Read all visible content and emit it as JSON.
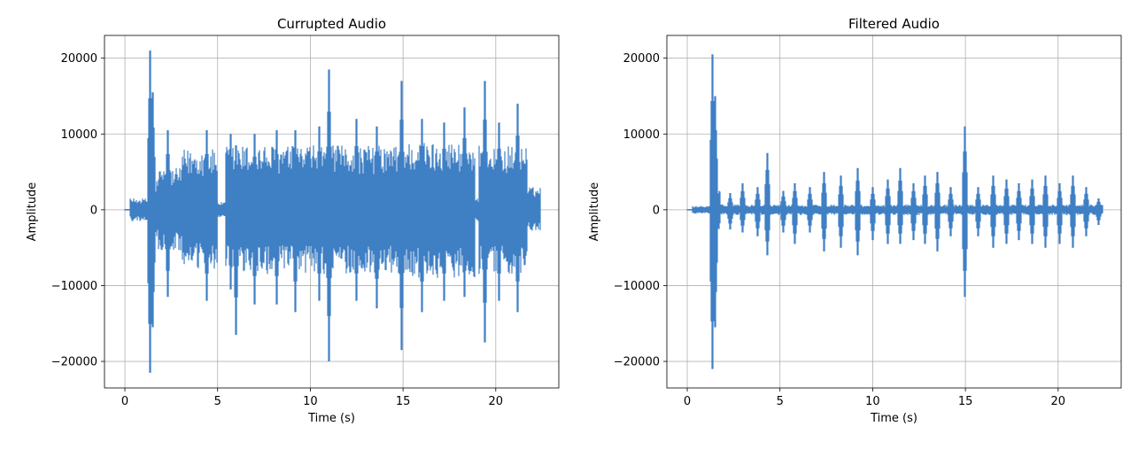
{
  "chart_data": [
    {
      "type": "line",
      "title": "Currupted Audio",
      "xlabel": "Time (s)",
      "ylabel": "Amplitude",
      "xlim": [
        -1.1,
        23.4
      ],
      "ylim": [
        -23500,
        23000
      ],
      "xticks": [
        0,
        5,
        10,
        15,
        20
      ],
      "yticks": [
        -20000,
        -10000,
        0,
        10000,
        20000
      ],
      "xtick_labels": [
        "0",
        "5",
        "10",
        "15",
        "20"
      ],
      "ytick_labels": [
        "−20000",
        "−10000",
        "0",
        "10000",
        "20000"
      ],
      "grid": true,
      "color": "#3f7fc4",
      "series": [
        {
          "x_start": 0.0,
          "x_end": 22.4,
          "envelope_segments": [
            {
              "t0": 0.0,
              "t1": 0.25,
              "amp": 0
            },
            {
              "t0": 0.25,
              "t1": 1.3,
              "amp": 1500
            },
            {
              "t0": 1.3,
              "t1": 1.55,
              "amp": 14000
            },
            {
              "t0": 1.55,
              "t1": 1.8,
              "amp": 4000
            },
            {
              "t0": 1.8,
              "t1": 3.1,
              "amp": 5500
            },
            {
              "t0": 3.1,
              "t1": 5.0,
              "amp": 8000
            },
            {
              "t0": 5.0,
              "t1": 5.4,
              "amp": 1000
            },
            {
              "t0": 5.4,
              "t1": 14.8,
              "amp": 8500
            },
            {
              "t0": 14.8,
              "t1": 18.9,
              "amp": 9000
            },
            {
              "t0": 18.9,
              "t1": 19.1,
              "amp": 1500
            },
            {
              "t0": 19.1,
              "t1": 21.7,
              "amp": 8500
            },
            {
              "t0": 21.7,
              "t1": 22.4,
              "amp": 3000
            }
          ],
          "peaks": [
            {
              "t": 1.38,
              "max": 21000,
              "min": -21500
            },
            {
              "t": 1.5,
              "max": 15500,
              "min": -15500
            },
            {
              "t": 2.3,
              "max": 10500,
              "min": -11500
            },
            {
              "t": 4.4,
              "max": 10500,
              "min": -12000
            },
            {
              "t": 5.7,
              "max": 10000,
              "min": -10500
            },
            {
              "t": 6.0,
              "max": 8500,
              "min": -16500
            },
            {
              "t": 7.0,
              "max": 10000,
              "min": -12500
            },
            {
              "t": 8.2,
              "max": 10500,
              "min": -12500
            },
            {
              "t": 9.2,
              "max": 10500,
              "min": -13500
            },
            {
              "t": 10.5,
              "max": 11000,
              "min": -12000
            },
            {
              "t": 11.0,
              "max": 18500,
              "min": -20000
            },
            {
              "t": 12.5,
              "max": 12000,
              "min": -12000
            },
            {
              "t": 13.6,
              "max": 11000,
              "min": -13000
            },
            {
              "t": 14.9,
              "max": 17000,
              "min": -18500
            },
            {
              "t": 16.0,
              "max": 12000,
              "min": -13500
            },
            {
              "t": 17.2,
              "max": 11500,
              "min": -12000
            },
            {
              "t": 18.3,
              "max": 13500,
              "min": -11500
            },
            {
              "t": 19.4,
              "max": 17000,
              "min": -17500
            },
            {
              "t": 20.2,
              "max": 11500,
              "min": -12000
            },
            {
              "t": 21.2,
              "max": 14000,
              "min": -13500
            }
          ]
        }
      ]
    },
    {
      "type": "line",
      "title": "Filtered Audio",
      "xlabel": "Time (s)",
      "ylabel": "Amplitude",
      "xlim": [
        -1.1,
        23.4
      ],
      "ylim": [
        -23500,
        23000
      ],
      "xticks": [
        0,
        5,
        10,
        15,
        20
      ],
      "yticks": [
        -20000,
        -10000,
        0,
        10000,
        20000
      ],
      "xtick_labels": [
        "0",
        "5",
        "10",
        "15",
        "20"
      ],
      "ytick_labels": [
        "−20000",
        "−10000",
        "0",
        "10000",
        "20000"
      ],
      "grid": true,
      "color": "#3f7fc4",
      "series": [
        {
          "x_start": 0.0,
          "x_end": 22.4,
          "envelope_segments": [
            {
              "t0": 0.0,
              "t1": 0.25,
              "amp": 0
            },
            {
              "t0": 0.25,
              "t1": 1.3,
              "amp": 500
            },
            {
              "t0": 1.3,
              "t1": 1.8,
              "amp": 3000
            },
            {
              "t0": 1.8,
              "t1": 22.4,
              "amp": 700
            }
          ],
          "peaks": [
            {
              "t": 1.38,
              "max": 20500,
              "min": -21000
            },
            {
              "t": 1.5,
              "max": 15000,
              "min": -15500
            },
            {
              "t": 2.3,
              "max": 2200,
              "min": -2600
            },
            {
              "t": 3.0,
              "max": 3500,
              "min": -3000
            },
            {
              "t": 3.8,
              "max": 3000,
              "min": -3500
            },
            {
              "t": 4.3,
              "max": 7500,
              "min": -6000
            },
            {
              "t": 5.2,
              "max": 2500,
              "min": -3000
            },
            {
              "t": 5.8,
              "max": 3500,
              "min": -4500
            },
            {
              "t": 6.6,
              "max": 3000,
              "min": -3000
            },
            {
              "t": 7.4,
              "max": 5000,
              "min": -5500
            },
            {
              "t": 8.3,
              "max": 4500,
              "min": -5000
            },
            {
              "t": 9.2,
              "max": 5500,
              "min": -6000
            },
            {
              "t": 10.0,
              "max": 3000,
              "min": -4000
            },
            {
              "t": 10.8,
              "max": 4000,
              "min": -4500
            },
            {
              "t": 11.5,
              "max": 5500,
              "min": -4500
            },
            {
              "t": 12.2,
              "max": 3500,
              "min": -4000
            },
            {
              "t": 12.8,
              "max": 4500,
              "min": -4500
            },
            {
              "t": 13.5,
              "max": 5000,
              "min": -5500
            },
            {
              "t": 14.2,
              "max": 3000,
              "min": -3500
            },
            {
              "t": 14.95,
              "max": 11000,
              "min": -11500
            },
            {
              "t": 15.7,
              "max": 3000,
              "min": -3500
            },
            {
              "t": 16.5,
              "max": 4500,
              "min": -5000
            },
            {
              "t": 17.2,
              "max": 4000,
              "min": -4500
            },
            {
              "t": 17.9,
              "max": 3500,
              "min": -4000
            },
            {
              "t": 18.6,
              "max": 4000,
              "min": -4500
            },
            {
              "t": 19.3,
              "max": 4500,
              "min": -5000
            },
            {
              "t": 20.1,
              "max": 3500,
              "min": -4500
            },
            {
              "t": 20.8,
              "max": 4500,
              "min": -5000
            },
            {
              "t": 21.5,
              "max": 3000,
              "min": -3500
            },
            {
              "t": 22.2,
              "max": 1500,
              "min": -2000
            }
          ]
        }
      ]
    }
  ]
}
